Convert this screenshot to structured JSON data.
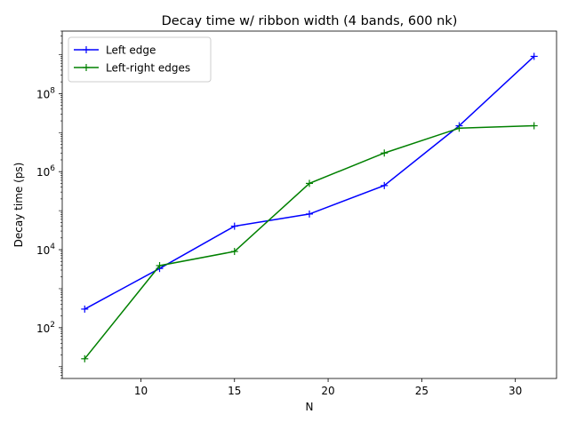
{
  "chart_data": {
    "type": "line",
    "title": "Decay time w/ ribbon width (4 bands, 600 nk)",
    "xlabel": "N",
    "ylabel": "Decay time (ps)",
    "x_scale": "linear",
    "y_scale": "log",
    "xlim": [
      5.8,
      32.2
    ],
    "ylim": [
      5,
      4000000000
    ],
    "x_ticks": [
      10,
      15,
      20,
      25,
      30
    ],
    "y_ticks": [
      100,
      10000,
      1000000,
      100000000
    ],
    "y_tick_labels": [
      {
        "base": "10",
        "exp": "2"
      },
      {
        "base": "10",
        "exp": "4"
      },
      {
        "base": "10",
        "exp": "6"
      },
      {
        "base": "10",
        "exp": "8"
      }
    ],
    "grid": false,
    "legend_position": "upper left",
    "series": [
      {
        "name": "Left edge",
        "color": "#0000ff",
        "marker": "+",
        "x": [
          7,
          11,
          15,
          19,
          23,
          27,
          31
        ],
        "y": [
          300,
          3300,
          40000,
          82000,
          440000,
          15000000,
          900000000
        ]
      },
      {
        "name": "Left-right edges",
        "color": "#008000",
        "marker": "+",
        "x": [
          7,
          11,
          15,
          19,
          23,
          27,
          31
        ],
        "y": [
          16,
          3900,
          9000,
          500000,
          3000000,
          13000000,
          15000000
        ]
      }
    ]
  }
}
